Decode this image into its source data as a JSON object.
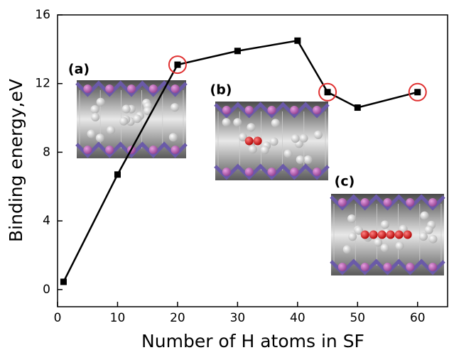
{
  "chart_data": {
    "type": "line",
    "x_label": "Number of  H atoms in SF",
    "y_label": "Binding energy,eV",
    "x": [
      1,
      10,
      20,
      30,
      40,
      45,
      50,
      60
    ],
    "series": [
      {
        "color": "#000000",
        "values": [
          0.45,
          6.7,
          13.1,
          13.9,
          14.5,
          11.5,
          10.6,
          11.5
        ]
      }
    ],
    "circled_x": [
      20,
      45,
      60
    ],
    "circle_color": "#e03030",
    "xlim": [
      0,
      65
    ],
    "xticks": [
      0,
      10,
      20,
      30,
      40,
      50,
      60
    ],
    "ylim": [
      -1,
      16
    ],
    "yticks": [
      0,
      4,
      8,
      12,
      16
    ],
    "annotations": [
      "(a)",
      "(b)",
      "(c)"
    ]
  }
}
